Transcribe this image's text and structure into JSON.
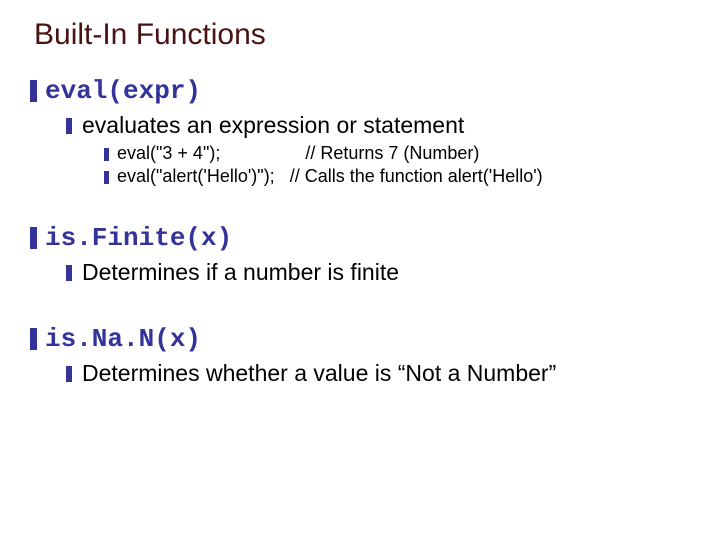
{
  "slide": {
    "title": "Built-In Functions",
    "title_color": "#4a1212",
    "title_fontsize": 30,
    "bullet_color": "#333399",
    "heading_color": "#333399",
    "body_color": "#000000",
    "background_color": "#ffffff",
    "sections": [
      {
        "heading": "eval(expr)",
        "sub": "evaluates an expression or statement",
        "examples": [
          "eval(\"3 + 4\");                 // Returns 7 (Number)",
          "eval(\"alert('Hello')\");   // Calls the function alert('Hello')"
        ]
      },
      {
        "heading": "is.Finite(x)",
        "sub": "Determines if a number is finite",
        "examples": []
      },
      {
        "heading": "is.Na.N(x)",
        "sub": "Determines whether a value is “Not a Number”",
        "examples": []
      }
    ]
  }
}
